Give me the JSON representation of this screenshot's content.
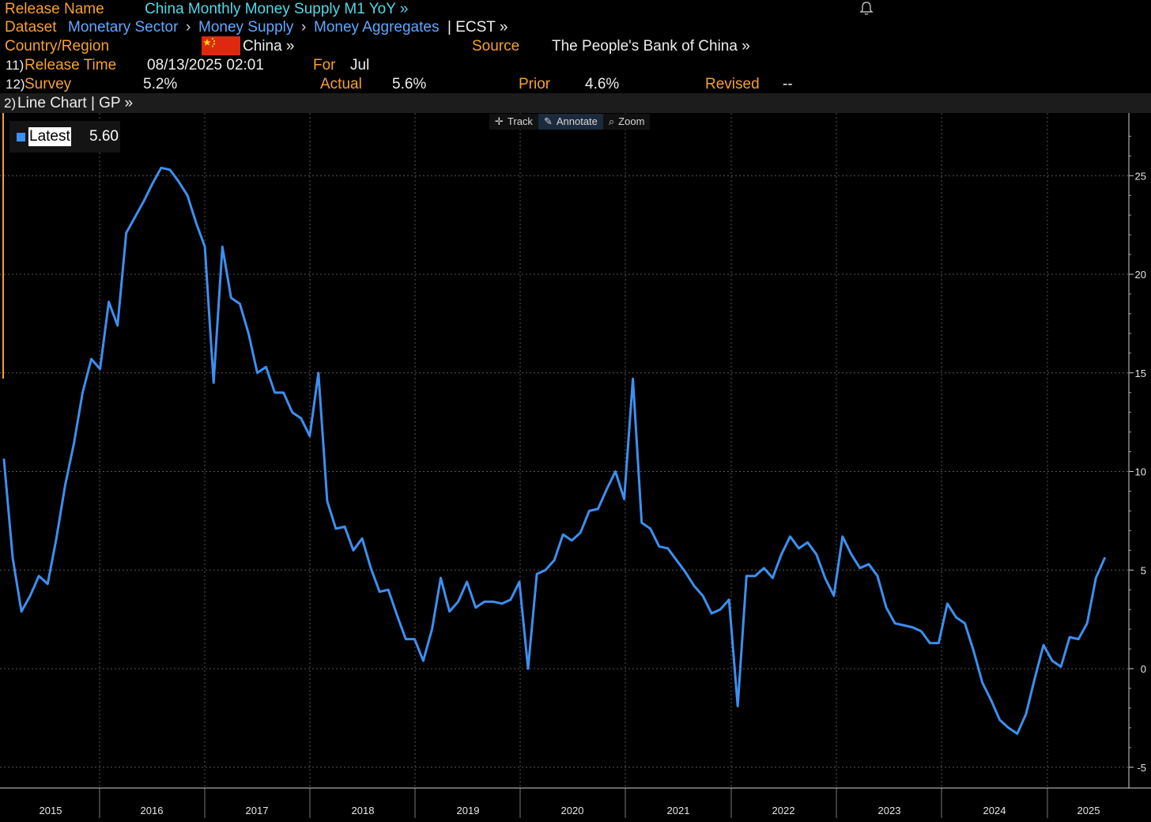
{
  "header": {
    "release_name_label": "Release Name",
    "release_name": "China Monthly Money Supply M1 YoY »",
    "dataset_label": "Dataset",
    "dataset_crumbs": [
      "Monetary Sector",
      "Money Supply",
      "Money Aggregates"
    ],
    "dataset_tail": "| ECST »",
    "country_label": "Country/Region",
    "country": "China »",
    "source_label": "Source",
    "source": "The People's Bank of China »",
    "row11_num": "11)",
    "release_time_label": "Release Time",
    "release_time": "08/13/2025 02:01",
    "for_label": "For",
    "for_value": "Jul",
    "row12_num": "12)",
    "survey_label": "Survey",
    "survey": "5.2%",
    "actual_label": "Actual",
    "actual": "5.6%",
    "prior_label": "Prior",
    "prior": "4.6%",
    "revised_label": "Revised",
    "revised": "--"
  },
  "subbar": {
    "num": "2)",
    "label": "Line Chart | GP »"
  },
  "toolbar": {
    "track": "Track",
    "annotate": "Annotate",
    "zoom": "Zoom"
  },
  "legend": {
    "label": "Latest",
    "value": "5.60"
  },
  "colors": {
    "line": "#3d8ff0",
    "accent": "#f5a034",
    "header_value": "#4fd8e8",
    "link": "#5fa8ff"
  },
  "chart_data": {
    "type": "line",
    "title": "",
    "x_start": "2015-01",
    "x_labels": [
      "2015",
      "2016",
      "2017",
      "2018",
      "2019",
      "2020",
      "2021",
      "2022",
      "2023",
      "2024",
      "2025"
    ],
    "ylim": [
      -5.5,
      28
    ],
    "yticks": [
      -5,
      0,
      5,
      10,
      15,
      20,
      25
    ],
    "grid": true,
    "legend_position": "top-left",
    "series": [
      {
        "name": "Latest",
        "values": [
          10.6,
          5.6,
          2.9,
          3.7,
          4.7,
          4.3,
          6.6,
          9.3,
          11.4,
          14.0,
          15.7,
          15.2,
          18.6,
          17.4,
          22.1,
          22.9,
          23.7,
          24.6,
          25.4,
          25.3,
          24.7,
          24.0,
          22.6,
          21.4,
          14.5,
          21.4,
          18.8,
          18.5,
          17.0,
          15.0,
          15.3,
          14.0,
          14.0,
          13.0,
          12.7,
          11.8,
          15.0,
          8.5,
          7.1,
          7.2,
          6.0,
          6.6,
          5.1,
          3.9,
          4.0,
          2.7,
          1.5,
          1.5,
          0.4,
          2.0,
          4.6,
          2.9,
          3.4,
          4.4,
          3.1,
          3.4,
          3.4,
          3.3,
          3.5,
          4.4,
          0.0,
          4.8,
          5.0,
          5.5,
          6.8,
          6.5,
          6.9,
          8.0,
          8.1,
          9.1,
          10.0,
          8.6,
          14.7,
          7.4,
          7.1,
          6.2,
          6.1,
          5.5,
          4.9,
          4.2,
          3.7,
          2.8,
          3.0,
          3.5,
          -1.9,
          4.7,
          4.7,
          5.1,
          4.6,
          5.8,
          6.7,
          6.1,
          6.4,
          5.8,
          4.6,
          3.7,
          6.7,
          5.8,
          5.1,
          5.3,
          4.7,
          3.1,
          2.3,
          2.2,
          2.1,
          1.9,
          1.3,
          1.3,
          3.3,
          2.6,
          2.3,
          0.9,
          -0.7,
          -1.6,
          -2.6,
          -3.0,
          -3.3,
          -2.3,
          -0.5,
          1.2,
          0.4,
          0.1,
          1.6,
          1.5,
          2.3,
          4.6,
          5.6
        ]
      }
    ]
  }
}
